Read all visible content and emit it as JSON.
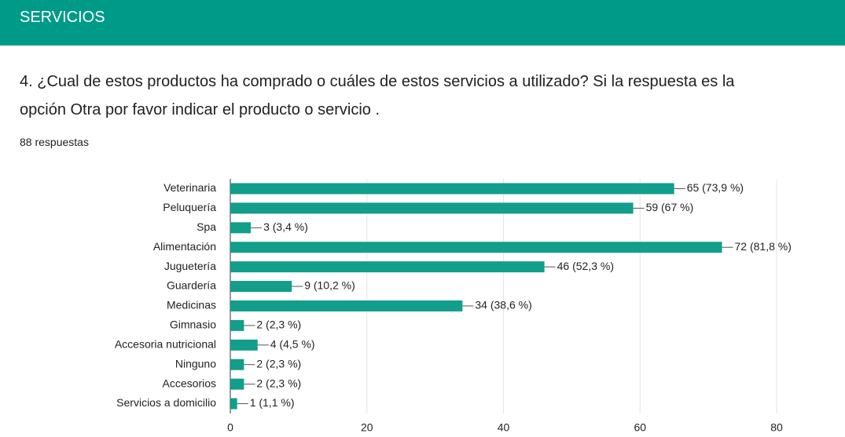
{
  "header": {
    "title": "SERVICIOS"
  },
  "question": "4. ¿Cual de estos productos ha comprado o cuáles de estos servicios a utilizado? Si la respuesta es la opción Otra por favor indicar el producto o servicio .",
  "responses": "88 respuestas",
  "chart_data": {
    "type": "barh",
    "categories": [
      "Veterinaria",
      "Peluquería",
      "Spa",
      "Alimentación",
      "Juguetería",
      "Guardería",
      "Medicinas",
      "Gimnasio",
      "Accesoria nutricional",
      "Ninguno",
      "Accesorios",
      "Servicios a domicilio"
    ],
    "values": [
      65,
      59,
      3,
      72,
      46,
      9,
      34,
      2,
      4,
      2,
      2,
      1
    ],
    "value_labels": [
      "65 (73,9 %)",
      "59 (67 %)",
      "3 (3,4 %)",
      "72 (81,8 %)",
      "46 (52,3 %)",
      "9 (10,2 %)",
      "34 (38,6 %)",
      "2 (2,3 %)",
      "4 (4,5 %)",
      "2 (2,3 %)",
      "2 (2,3 %)",
      "1 (1,1 %)"
    ],
    "color": "#129e8a",
    "xlim": [
      0,
      80
    ],
    "xticks": [
      0,
      20,
      40,
      60,
      80
    ],
    "grid": true
  }
}
